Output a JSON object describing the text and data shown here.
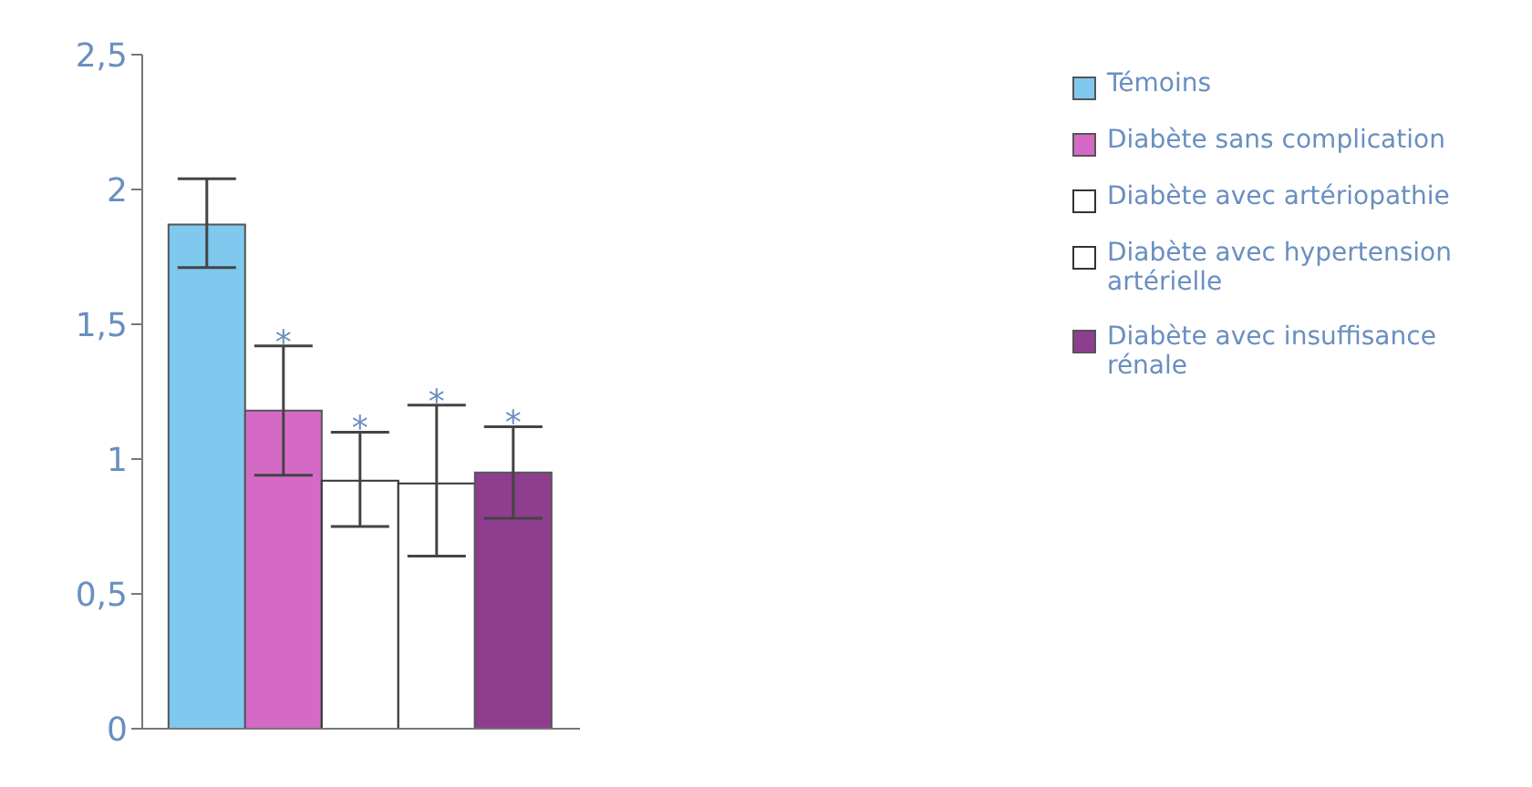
{
  "chart_data": {
    "type": "bar",
    "categories": [
      null
    ],
    "series": [
      {
        "name": "Témoins",
        "color": "#7fc8ee",
        "values": [
          1.87
        ],
        "errors": [
          [
            1.71,
            2.04
          ]
        ]
      },
      {
        "name": "Diabète sans complication",
        "color": "#d46ac6",
        "values": [
          1.18
        ],
        "errors": [
          [
            0.94,
            1.42
          ]
        ],
        "value_labels": [
          "*"
        ]
      },
      {
        "name": "Diabète avec artériopathie",
        "color": "#ffffff",
        "values": [
          0.92
        ],
        "errors": [
          [
            0.75,
            1.1
          ]
        ],
        "value_labels": [
          "*"
        ]
      },
      {
        "name": "Diabète avec hypertension artérielle",
        "color": "#ffffff",
        "values": [
          0.91
        ],
        "errors": [
          [
            0.64,
            1.2
          ]
        ],
        "value_labels": [
          "*"
        ]
      },
      {
        "name": "Diabète avec insuffisance rénale",
        "color": "#8f3d8f",
        "values": [
          0.95
        ],
        "errors": [
          [
            0.78,
            1.12
          ]
        ],
        "value_labels": [
          "*"
        ]
      }
    ],
    "ylim": [
      0,
      2.5
    ],
    "yticks": [
      0,
      {
        "value": 0.5,
        "label": "0,5"
      },
      1,
      {
        "value": 1.5,
        "label": "1,5"
      },
      2,
      {
        "value": 2.5,
        "label": "2,5"
      }
    ],
    "grid": false,
    "legend": "right",
    "tick_labels": "y"
  }
}
